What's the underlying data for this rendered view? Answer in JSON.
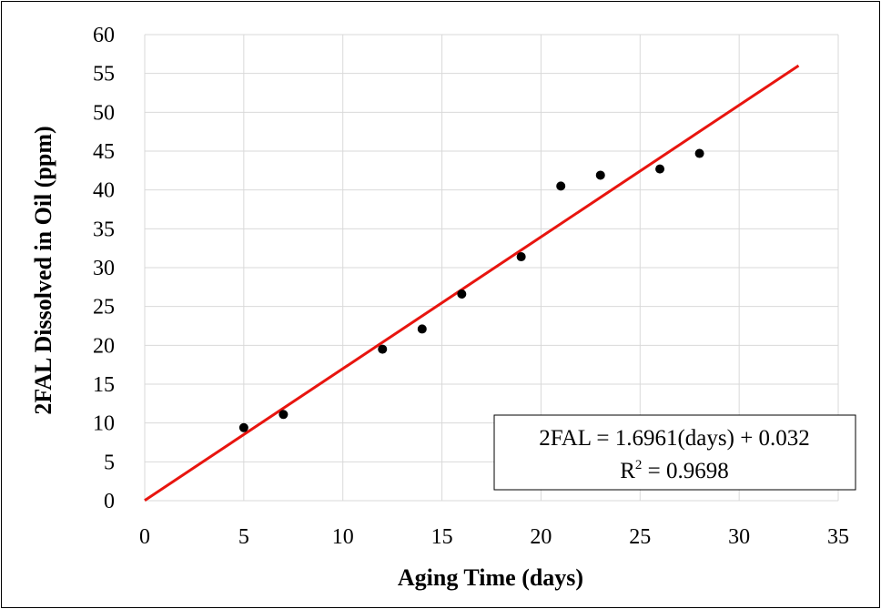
{
  "chart_data": {
    "type": "scatter",
    "xlabel": "Aging Time (days)",
    "ylabel": "2FAL Dissolved in Oil (ppm)",
    "xlim": [
      0,
      35
    ],
    "ylim": [
      0,
      60
    ],
    "xticks": [
      0,
      5,
      10,
      15,
      20,
      25,
      30,
      35
    ],
    "yticks": [
      0,
      5,
      10,
      15,
      20,
      25,
      30,
      35,
      40,
      45,
      50,
      55,
      60
    ],
    "grid": true,
    "series": [
      {
        "points": [
          {
            "x": 5,
            "y": 9.4
          },
          {
            "x": 7,
            "y": 11.1
          },
          {
            "x": 12,
            "y": 19.5
          },
          {
            "x": 14,
            "y": 22.1
          },
          {
            "x": 16,
            "y": 26.6
          },
          {
            "x": 19,
            "y": 31.4
          },
          {
            "x": 21,
            "y": 40.5
          },
          {
            "x": 23,
            "y": 41.9
          },
          {
            "x": 26,
            "y": 42.7
          },
          {
            "x": 28,
            "y": 44.7
          }
        ],
        "color": "#000000"
      }
    ],
    "trendline": {
      "slope": 1.6961,
      "intercept": 0.032,
      "x_range": [
        0,
        33
      ],
      "color": "#e8150f"
    },
    "annotation": {
      "equation": "2FAL = 1.6961(days) + 0.032",
      "r2_prefix": "R",
      "r2_superscript": "2",
      "r2_value": " = 0.9698"
    }
  }
}
